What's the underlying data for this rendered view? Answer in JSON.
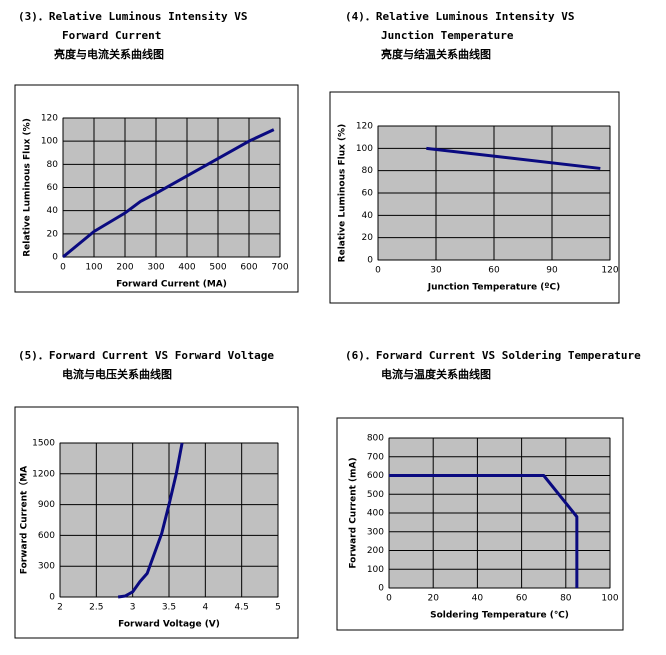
{
  "chart_data": [
    {
      "type": "line",
      "heading": [
        "(3)．Relative Luminous Intensity VS",
        "Forward Current",
        "亮度与电流关系曲线图"
      ],
      "xlabel": "Forward Current (MA)",
      "ylabel": "Relative Luminous Flux  (%)",
      "x": [
        0,
        100,
        200,
        250,
        300,
        400,
        500,
        600,
        680
      ],
      "values": [
        0,
        22,
        38,
        48,
        55,
        70,
        85,
        100,
        110
      ],
      "color": "#0a0a80",
      "xlim": [
        0,
        700
      ],
      "xticks": [
        0,
        100,
        200,
        300,
        400,
        500,
        600,
        700
      ],
      "ylim": [
        0,
        120
      ],
      "yticks": [
        0,
        20,
        40,
        60,
        80,
        100,
        120
      ],
      "grid": true
    },
    {
      "type": "line",
      "heading": [
        "(4)．Relative Luminous Intensity VS",
        "Junction Temperature",
        "亮度与结温关系曲线图"
      ],
      "xlabel": "Junction Temperature (ºC)",
      "ylabel": "Relative Luminous Flux  (%)",
      "x": [
        25,
        115
      ],
      "values": [
        100,
        82
      ],
      "color": "#0a0a80",
      "xlim": [
        0,
        120
      ],
      "xticks": [
        0,
        30,
        60,
        90,
        120
      ],
      "ylim": [
        0,
        120
      ],
      "yticks": [
        0,
        20,
        40,
        60,
        80,
        100,
        120
      ],
      "grid": true
    },
    {
      "type": "line",
      "heading": [
        "(5)．Forward Current VS Forward Voltage",
        "电流与电压关系曲线图"
      ],
      "xlabel": "Forward Voltage (V)",
      "ylabel": "Forward Current（MA",
      "x": [
        2.8,
        2.9,
        3.0,
        3.1,
        3.2,
        3.4,
        3.5,
        3.6,
        3.68
      ],
      "values": [
        0,
        10,
        50,
        150,
        230,
        620,
        900,
        1200,
        1500
      ],
      "color": "#0a0a80",
      "xlim": [
        2,
        5
      ],
      "xticks": [
        2,
        2.5,
        3,
        3.5,
        4,
        4.5,
        5
      ],
      "ylim": [
        0,
        1500
      ],
      "yticks": [
        0,
        300,
        600,
        900,
        1200,
        1500
      ],
      "grid": true
    },
    {
      "type": "line",
      "heading": [
        "(6)．Forward Current VS Soldering Temperature",
        "电流与温度关系曲线图"
      ],
      "xlabel": "Soldering Temperature (℃)",
      "ylabel": "Forward Current (mA)",
      "x": [
        0,
        70,
        85,
        85
      ],
      "values": [
        600,
        600,
        380,
        0
      ],
      "color": "#0a0a80",
      "xlim": [
        0,
        100
      ],
      "xticks": [
        0,
        20,
        40,
        60,
        80,
        100
      ],
      "ylim": [
        0,
        800
      ],
      "yticks": [
        0,
        100,
        200,
        300,
        400,
        500,
        600,
        700,
        800
      ],
      "grid": true
    }
  ]
}
